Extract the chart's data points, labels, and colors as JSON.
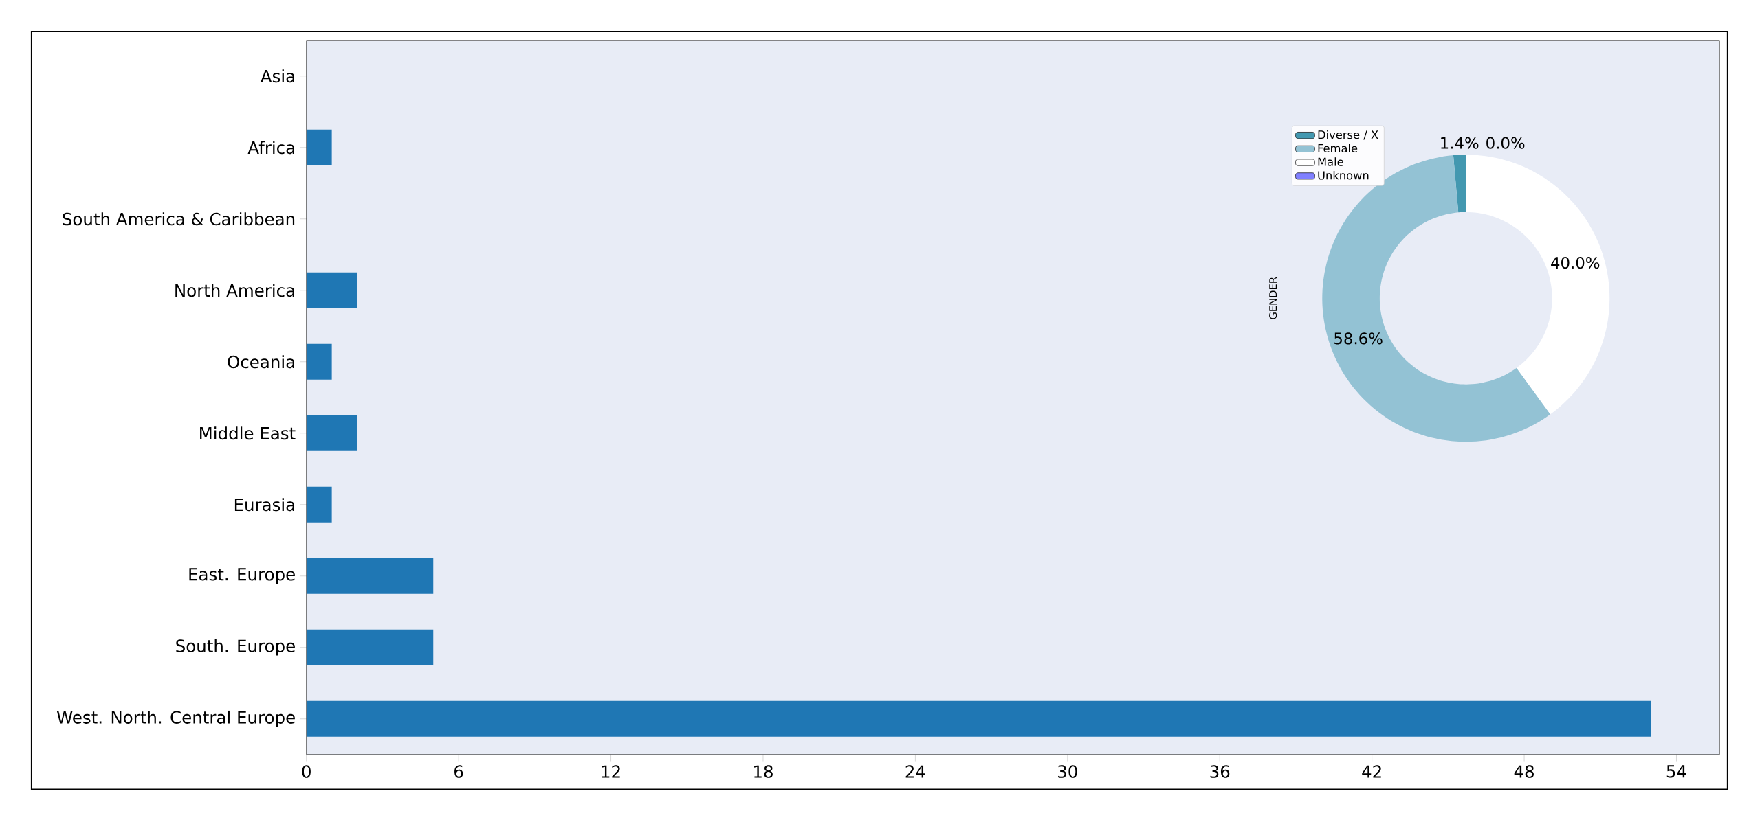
{
  "chart_data": [
    {
      "type": "bar",
      "orientation": "horizontal",
      "categories": [
        "Asia",
        "Africa",
        "South America & Caribbean",
        "North America",
        "Oceania",
        "Middle East",
        "Eurasia",
        "East. Europe",
        "South. Europe",
        "West. North. Central Europe"
      ],
      "values": [
        0,
        1,
        0,
        2,
        1,
        2,
        1,
        5,
        5,
        53
      ],
      "color": "#1f77b4",
      "xlim": [
        0,
        55.7
      ],
      "xticks": [
        0,
        6,
        12,
        18,
        24,
        30,
        36,
        42,
        48,
        54
      ]
    },
    {
      "type": "donut",
      "ylabel": "GENDER",
      "categories": [
        "Diverse / X",
        "Female",
        "Male",
        "Unknown"
      ],
      "values": [
        1.4,
        58.6,
        40.0,
        0.0
      ],
      "colors": [
        "#4398b0",
        "#93c2d4",
        "#ffffff",
        "#8080ff"
      ],
      "value_labels": [
        "1.4%",
        "58.6%",
        "40.0%",
        "0.0%"
      ],
      "legend": "top left"
    }
  ]
}
